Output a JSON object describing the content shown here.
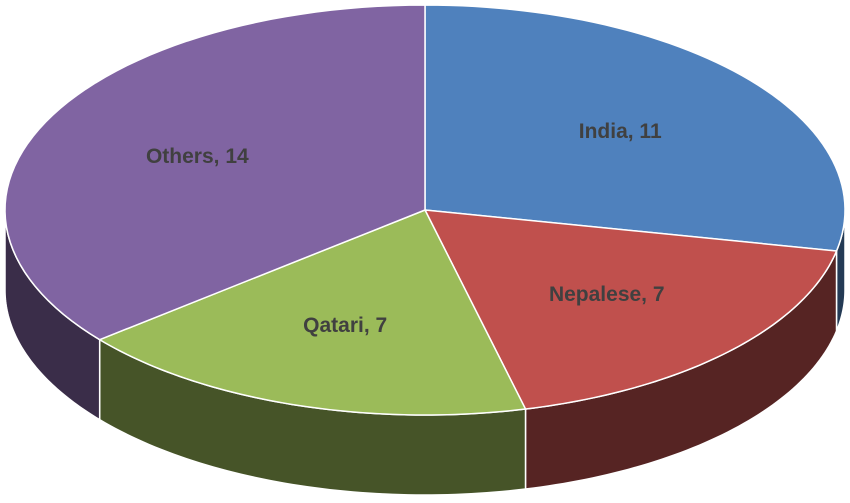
{
  "chart_data": {
    "type": "pie",
    "values": [
      11,
      7,
      7,
      14
    ],
    "value_labels": [
      "India, 11",
      "Nepalese, 7",
      "Qatari, 7",
      "Others, 14"
    ],
    "colors": [
      "#4f81bd",
      "#c0504d",
      "#9bbb59",
      "#8064a2"
    ]
  }
}
